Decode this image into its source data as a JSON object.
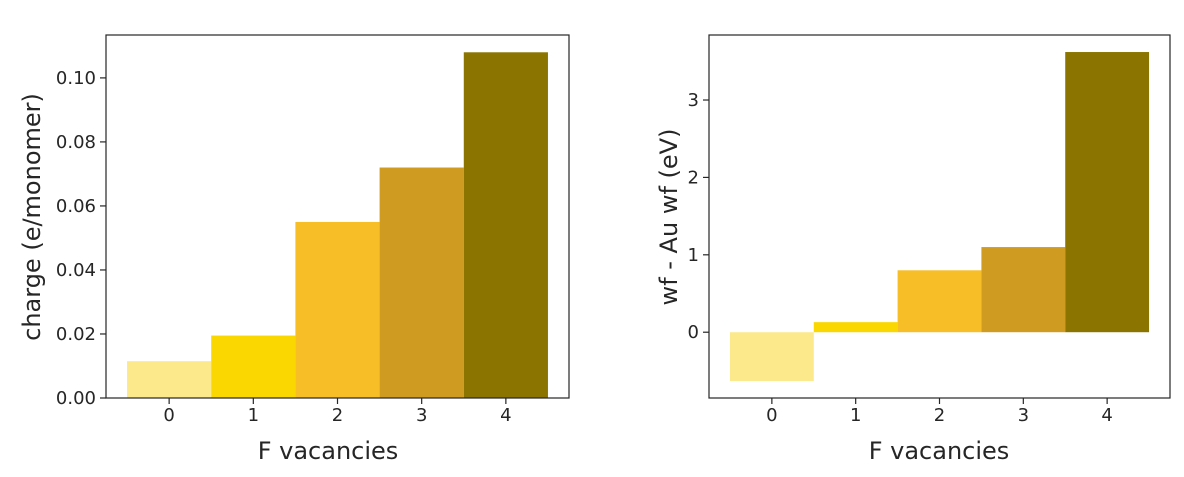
{
  "chart_data": [
    {
      "type": "bar",
      "categories": [
        "0",
        "1",
        "2",
        "3",
        "4"
      ],
      "values": [
        0.0115,
        0.0195,
        0.055,
        0.072,
        0.108
      ],
      "colors": [
        "#fbe98c",
        "#fad700",
        "#f8be27",
        "#d09b21",
        "#8c7400"
      ],
      "xlabel": "F vacancies",
      "ylabel": "charge (e/monomer)",
      "ylim": [
        0,
        0.1134
      ],
      "yticks": [
        0.0,
        0.02,
        0.04,
        0.06,
        0.08,
        0.1
      ],
      "ytick_labels": [
        "0.00",
        "0.02",
        "0.04",
        "0.06",
        "0.08",
        "0.10"
      ],
      "grid": false
    },
    {
      "type": "bar",
      "categories": [
        "0",
        "1",
        "2",
        "3",
        "4"
      ],
      "values": [
        -0.63,
        0.13,
        0.8,
        1.1,
        3.62
      ],
      "colors": [
        "#fbe98c",
        "#fad700",
        "#f8be27",
        "#d09b21",
        "#8c7400"
      ],
      "xlabel": "F vacancies",
      "ylabel": "wf - Au wf (eV)",
      "ylim": [
        -0.85,
        3.84
      ],
      "yticks": [
        0,
        1,
        2,
        3
      ],
      "ytick_labels": [
        "0",
        "1",
        "2",
        "3"
      ],
      "grid": false
    }
  ]
}
